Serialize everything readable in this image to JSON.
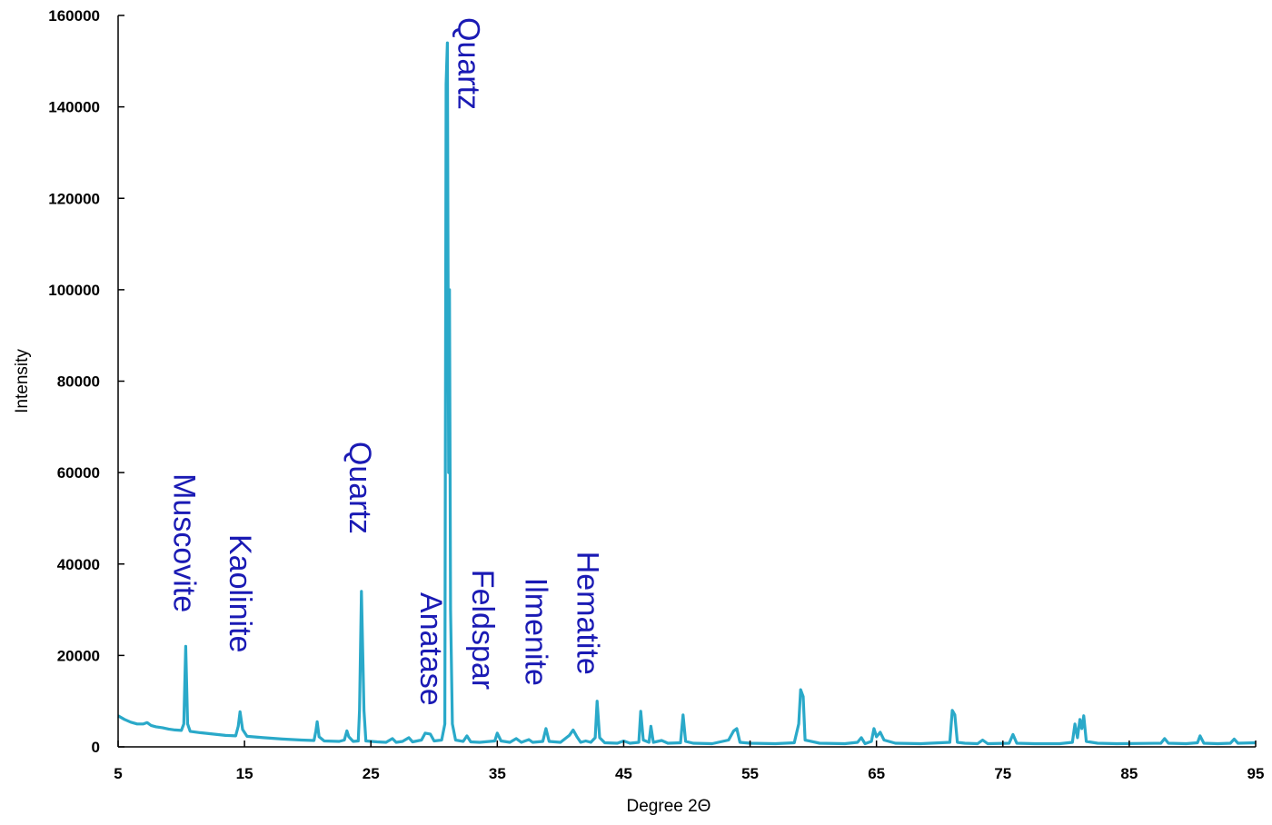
{
  "chart_data": {
    "type": "line",
    "title": "",
    "xlabel": "Degree 2Θ",
    "ylabel": "Intensity",
    "xlim": [
      5,
      95
    ],
    "ylim": [
      0,
      160000
    ],
    "x_ticks": [
      5,
      15,
      25,
      35,
      45,
      55,
      65,
      75,
      85,
      95
    ],
    "y_ticks": [
      0,
      20000,
      40000,
      60000,
      80000,
      100000,
      120000,
      140000,
      160000
    ],
    "grid": false,
    "legend": "none",
    "colors": {
      "line": "#2aa9c9",
      "annotation": "#1a1ab4",
      "axis": "#000000"
    },
    "series": [
      {
        "points": [
          [
            5.0,
            6800
          ],
          [
            5.5,
            6000
          ],
          [
            6.0,
            5400
          ],
          [
            6.5,
            5000
          ],
          [
            7.0,
            5000
          ],
          [
            7.3,
            5300
          ],
          [
            7.6,
            4700
          ],
          [
            8.0,
            4400
          ],
          [
            8.5,
            4200
          ],
          [
            9.0,
            3900
          ],
          [
            9.5,
            3700
          ],
          [
            10.0,
            3600
          ],
          [
            10.2,
            5000
          ],
          [
            10.35,
            22000
          ],
          [
            10.5,
            5000
          ],
          [
            10.7,
            3400
          ],
          [
            11.5,
            3100
          ],
          [
            12.5,
            2800
          ],
          [
            13.5,
            2500
          ],
          [
            14.3,
            2400
          ],
          [
            14.5,
            4500
          ],
          [
            14.65,
            7700
          ],
          [
            14.85,
            3800
          ],
          [
            15.2,
            2300
          ],
          [
            16.5,
            2000
          ],
          [
            18.0,
            1700
          ],
          [
            19.5,
            1500
          ],
          [
            20.5,
            1400
          ],
          [
            20.65,
            3500
          ],
          [
            20.75,
            5500
          ],
          [
            20.9,
            2200
          ],
          [
            21.3,
            1300
          ],
          [
            22.5,
            1200
          ],
          [
            22.9,
            1500
          ],
          [
            23.1,
            3500
          ],
          [
            23.25,
            2200
          ],
          [
            23.6,
            1200
          ],
          [
            24.0,
            1300
          ],
          [
            24.1,
            8000
          ],
          [
            24.25,
            34000
          ],
          [
            24.45,
            8000
          ],
          [
            24.6,
            1300
          ],
          [
            25.5,
            1100
          ],
          [
            26.2,
            1000
          ],
          [
            26.7,
            1800
          ],
          [
            27.0,
            1000
          ],
          [
            27.5,
            1200
          ],
          [
            28.0,
            2000
          ],
          [
            28.3,
            1100
          ],
          [
            29.0,
            1500
          ],
          [
            29.3,
            3000
          ],
          [
            29.7,
            2800
          ],
          [
            30.0,
            1300
          ],
          [
            30.6,
            1500
          ],
          [
            30.85,
            5000
          ],
          [
            30.95,
            145000
          ],
          [
            31.05,
            154000
          ],
          [
            31.15,
            60000
          ],
          [
            31.22,
            100000
          ],
          [
            31.3,
            30000
          ],
          [
            31.45,
            5000
          ],
          [
            31.7,
            1500
          ],
          [
            32.3,
            1200
          ],
          [
            32.6,
            2400
          ],
          [
            32.9,
            1100
          ],
          [
            33.6,
            1000
          ],
          [
            34.8,
            1300
          ],
          [
            35.0,
            3000
          ],
          [
            35.3,
            1300
          ],
          [
            36.0,
            1000
          ],
          [
            36.5,
            1800
          ],
          [
            36.9,
            1000
          ],
          [
            37.5,
            1600
          ],
          [
            37.8,
            1000
          ],
          [
            38.6,
            1200
          ],
          [
            38.85,
            4000
          ],
          [
            39.1,
            1200
          ],
          [
            40.0,
            1000
          ],
          [
            40.7,
            2500
          ],
          [
            41.0,
            3700
          ],
          [
            41.3,
            2200
          ],
          [
            41.6,
            1000
          ],
          [
            42.0,
            1300
          ],
          [
            42.4,
            1000
          ],
          [
            42.75,
            2000
          ],
          [
            42.9,
            10000
          ],
          [
            43.1,
            2000
          ],
          [
            43.5,
            900
          ],
          [
            44.5,
            800
          ],
          [
            45.0,
            1300
          ],
          [
            45.5,
            800
          ],
          [
            46.2,
            1000
          ],
          [
            46.35,
            7800
          ],
          [
            46.55,
            1500
          ],
          [
            47.0,
            1000
          ],
          [
            47.15,
            4500
          ],
          [
            47.35,
            1000
          ],
          [
            48.0,
            1400
          ],
          [
            48.5,
            800
          ],
          [
            49.5,
            900
          ],
          [
            49.7,
            7000
          ],
          [
            49.9,
            1200
          ],
          [
            50.5,
            800
          ],
          [
            52.0,
            700
          ],
          [
            53.3,
            1500
          ],
          [
            53.7,
            3500
          ],
          [
            53.95,
            4000
          ],
          [
            54.2,
            1000
          ],
          [
            55.0,
            800
          ],
          [
            57.0,
            700
          ],
          [
            58.5,
            900
          ],
          [
            58.85,
            5000
          ],
          [
            59.0,
            12500
          ],
          [
            59.2,
            11000
          ],
          [
            59.35,
            1500
          ],
          [
            60.5,
            800
          ],
          [
            62.5,
            700
          ],
          [
            63.5,
            1000
          ],
          [
            63.8,
            2000
          ],
          [
            64.1,
            700
          ],
          [
            64.6,
            1200
          ],
          [
            64.8,
            4000
          ],
          [
            65.0,
            2200
          ],
          [
            65.3,
            3200
          ],
          [
            65.6,
            1500
          ],
          [
            66.5,
            800
          ],
          [
            68.5,
            700
          ],
          [
            70.8,
            1000
          ],
          [
            71.0,
            8000
          ],
          [
            71.2,
            7000
          ],
          [
            71.4,
            1000
          ],
          [
            72.0,
            800
          ],
          [
            73.0,
            700
          ],
          [
            73.4,
            1500
          ],
          [
            73.8,
            700
          ],
          [
            75.5,
            800
          ],
          [
            75.8,
            2700
          ],
          [
            76.1,
            800
          ],
          [
            77.5,
            700
          ],
          [
            79.5,
            700
          ],
          [
            80.5,
            1000
          ],
          [
            80.7,
            5000
          ],
          [
            80.9,
            2000
          ],
          [
            81.1,
            6000
          ],
          [
            81.25,
            4000
          ],
          [
            81.4,
            6800
          ],
          [
            81.6,
            1200
          ],
          [
            82.5,
            800
          ],
          [
            84.0,
            700
          ],
          [
            87.5,
            800
          ],
          [
            87.8,
            1800
          ],
          [
            88.1,
            800
          ],
          [
            89.5,
            700
          ],
          [
            90.4,
            900
          ],
          [
            90.6,
            2400
          ],
          [
            90.9,
            800
          ],
          [
            92.0,
            700
          ],
          [
            93.0,
            800
          ],
          [
            93.3,
            1700
          ],
          [
            93.6,
            800
          ],
          [
            95.0,
            900
          ]
        ]
      }
    ],
    "annotations": [
      {
        "text": "Muscovite",
        "x": 10.3,
        "y": 59800
      },
      {
        "text": "Kaolinite",
        "x": 14.7,
        "y": 46500
      },
      {
        "text": "Quartz",
        "x": 24.2,
        "y": 66800
      },
      {
        "text": "Anatase",
        "x": 29.8,
        "y": 33800
      },
      {
        "text": "Feldspar",
        "x": 33.9,
        "y": 38800
      },
      {
        "text": "Ilmenite",
        "x": 38.1,
        "y": 37000
      },
      {
        "text": "Hematite",
        "x": 42.2,
        "y": 42800
      },
      {
        "text": "Quartz",
        "x": 32.8,
        "y": 159600
      }
    ]
  }
}
